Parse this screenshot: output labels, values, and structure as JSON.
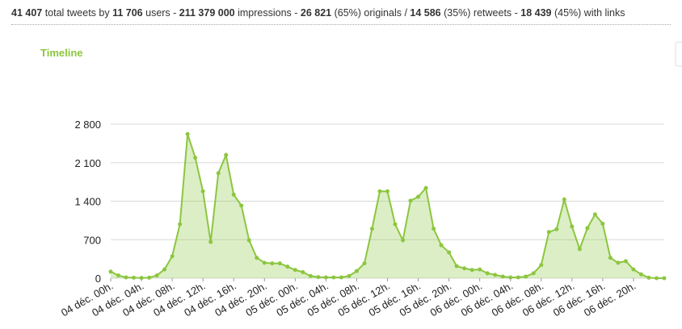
{
  "header": {
    "stats": [
      [
        "41 407",
        " total tweets by "
      ],
      [
        "11 706",
        " users - "
      ],
      [
        "211 379 000",
        " impressions - "
      ],
      [
        "26 821",
        " (65%) originals / "
      ],
      [
        "14 586",
        " (35%) retweets - "
      ],
      [
        "18 439",
        " (45%) with links"
      ]
    ]
  },
  "chart_data": {
    "type": "area",
    "title": "Timeline",
    "categories": [
      "04 déc. 00h.",
      null,
      null,
      null,
      "04 déc. 04h.",
      null,
      null,
      null,
      "04 déc. 08h.",
      null,
      null,
      null,
      "04 déc. 12h.",
      null,
      null,
      null,
      "04 déc. 16h.",
      null,
      null,
      null,
      "04 déc. 20h.",
      null,
      null,
      null,
      "05 déc. 00h.",
      null,
      null,
      null,
      "05 déc. 04h.",
      null,
      null,
      null,
      "05 déc. 08h.",
      null,
      null,
      null,
      "05 déc. 12h.",
      null,
      null,
      null,
      "05 déc. 16h.",
      null,
      null,
      null,
      "05 déc. 20h.",
      null,
      null,
      null,
      "06 déc. 00h.",
      null,
      null,
      null,
      "06 déc. 04h.",
      null,
      null,
      null,
      "06 déc. 08h.",
      null,
      null,
      null,
      "06 déc. 12h.",
      null,
      null,
      null,
      "06 déc. 16h.",
      null,
      null,
      null,
      "06 déc. 20h.",
      null,
      null,
      null,
      null
    ],
    "values": [
      120,
      50,
      15,
      10,
      5,
      10,
      50,
      160,
      400,
      980,
      2620,
      2190,
      1580,
      660,
      1910,
      2240,
      1520,
      1320,
      690,
      370,
      280,
      270,
      270,
      210,
      150,
      110,
      40,
      20,
      15,
      15,
      15,
      40,
      130,
      270,
      900,
      1580,
      1580,
      980,
      690,
      1410,
      1480,
      1640,
      900,
      600,
      470,
      220,
      180,
      150,
      160,
      90,
      60,
      30,
      15,
      15,
      30,
      90,
      240,
      840,
      890,
      1430,
      940,
      530,
      910,
      1160,
      990,
      370,
      280,
      310,
      160,
      70,
      10,
      0,
      0
    ],
    "color": "#8cc63f",
    "ylim": [
      0,
      2800
    ],
    "yticks": [
      0,
      700,
      {
        "value": 1400,
        "label": "1 400"
      },
      {
        "value": 2100,
        "label": "2 100"
      },
      {
        "value": 2800,
        "label": "2 800"
      }
    ],
    "grid": true
  }
}
